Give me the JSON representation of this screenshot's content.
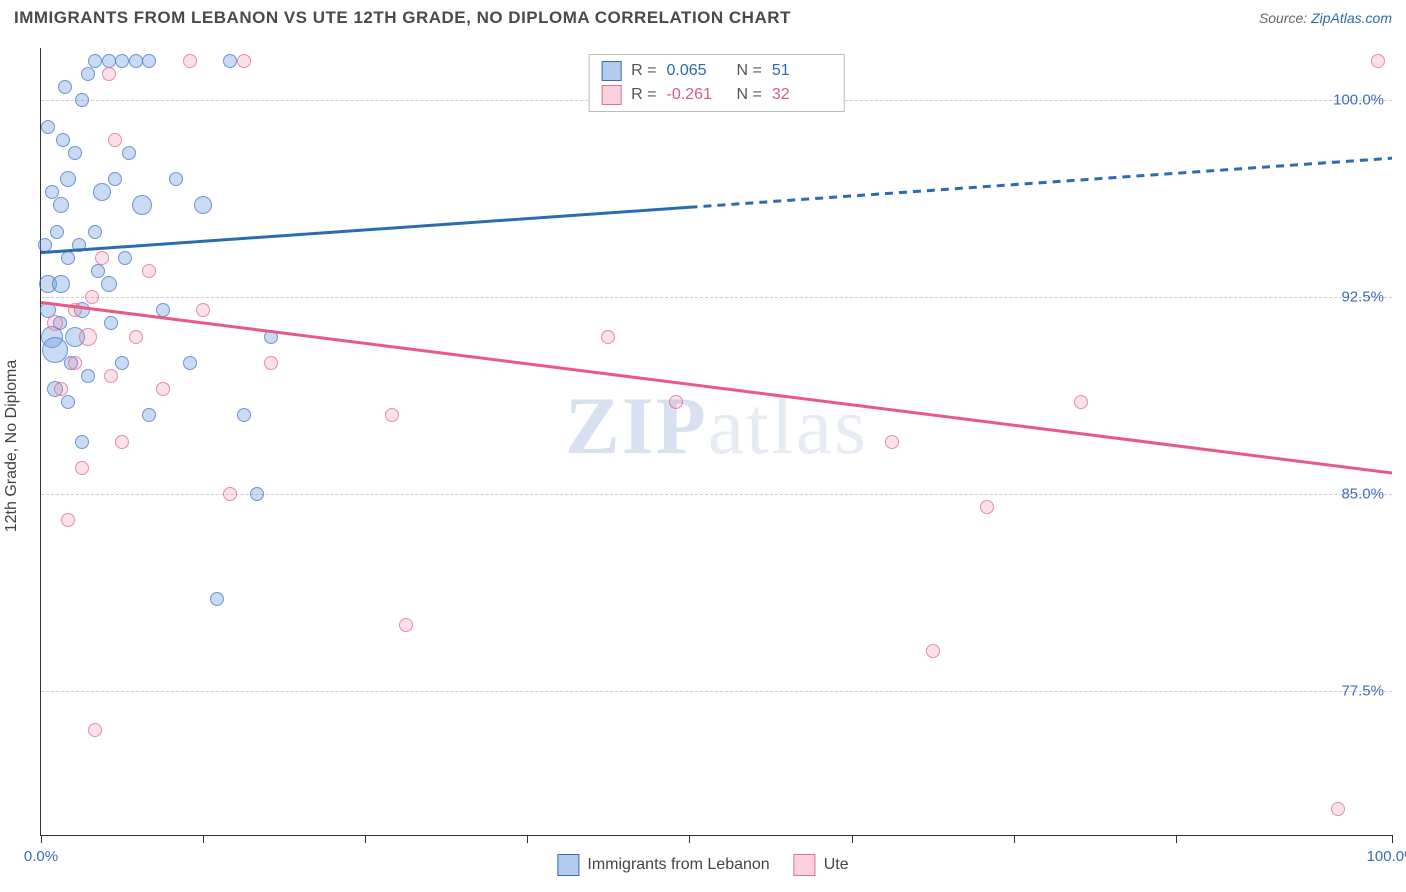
{
  "title": "IMMIGRANTS FROM LEBANON VS UTE 12TH GRADE, NO DIPLOMA CORRELATION CHART",
  "source_label": "Source:",
  "source_link": "ZipAtlas.com",
  "y_axis_label": "12th Grade, No Diploma",
  "watermark": {
    "bold": "ZIP",
    "rest": "atlas"
  },
  "chart": {
    "type": "scatter",
    "xlim": [
      0,
      100
    ],
    "ylim": [
      72,
      102
    ],
    "x_ticks": [
      0,
      12,
      24,
      36,
      48,
      60,
      72,
      84,
      100
    ],
    "x_tick_labels": {
      "0": "0.0%",
      "100": "100.0%"
    },
    "y_ticks": [
      77.5,
      85.0,
      92.5,
      100.0
    ],
    "y_tick_labels": [
      "77.5%",
      "85.0%",
      "92.5%",
      "100.0%"
    ],
    "grid_color": "#cccccc",
    "axis_color": "#333333",
    "background": "#ffffff",
    "series": [
      {
        "name": "Immigrants from Lebanon",
        "color_fill": "rgba(100,150,220,0.35)",
        "color_stroke": "#4a7bc8",
        "marker_size_range": [
          10,
          26
        ],
        "trend": {
          "y_start": 94.2,
          "y_end": 97.8,
          "solid_until_x": 48,
          "color": "#2b6cb0",
          "width": 3
        },
        "R": "0.065",
        "N": "51",
        "points": [
          {
            "x": 0.5,
            "y": 93,
            "s": 18
          },
          {
            "x": 0.5,
            "y": 92,
            "s": 16
          },
          {
            "x": 0.8,
            "y": 91,
            "s": 22
          },
          {
            "x": 1,
            "y": 90.5,
            "s": 26
          },
          {
            "x": 1.2,
            "y": 95,
            "s": 14
          },
          {
            "x": 1.5,
            "y": 96,
            "s": 16
          },
          {
            "x": 1.5,
            "y": 93,
            "s": 18
          },
          {
            "x": 2,
            "y": 94,
            "s": 14
          },
          {
            "x": 2,
            "y": 97,
            "s": 16
          },
          {
            "x": 2.5,
            "y": 98,
            "s": 14
          },
          {
            "x": 2.5,
            "y": 91,
            "s": 20
          },
          {
            "x": 3,
            "y": 92,
            "s": 16
          },
          {
            "x": 3,
            "y": 100,
            "s": 14
          },
          {
            "x": 3.5,
            "y": 101,
            "s": 14
          },
          {
            "x": 4,
            "y": 101.5,
            "s": 14
          },
          {
            "x": 4,
            "y": 95,
            "s": 14
          },
          {
            "x": 4.5,
            "y": 96.5,
            "s": 18
          },
          {
            "x": 5,
            "y": 101.5,
            "s": 14
          },
          {
            "x": 5,
            "y": 93,
            "s": 16
          },
          {
            "x": 5.5,
            "y": 97,
            "s": 14
          },
          {
            "x": 6,
            "y": 101.5,
            "s": 14
          },
          {
            "x": 6,
            "y": 90,
            "s": 14
          },
          {
            "x": 6.5,
            "y": 98,
            "s": 14
          },
          {
            "x": 7,
            "y": 101.5,
            "s": 14
          },
          {
            "x": 7.5,
            "y": 96,
            "s": 20
          },
          {
            "x": 8,
            "y": 88,
            "s": 14
          },
          {
            "x": 8,
            "y": 101.5,
            "s": 14
          },
          {
            "x": 9,
            "y": 92,
            "s": 14
          },
          {
            "x": 10,
            "y": 97,
            "s": 14
          },
          {
            "x": 11,
            "y": 90,
            "s": 14
          },
          {
            "x": 12,
            "y": 96,
            "s": 18
          },
          {
            "x": 13,
            "y": 81,
            "s": 14
          },
          {
            "x": 14,
            "y": 101.5,
            "s": 14
          },
          {
            "x": 15,
            "y": 88,
            "s": 14
          },
          {
            "x": 16,
            "y": 85,
            "s": 14
          },
          {
            "x": 17,
            "y": 91,
            "s": 14
          },
          {
            "x": 1,
            "y": 89,
            "s": 16
          },
          {
            "x": 2,
            "y": 88.5,
            "s": 14
          },
          {
            "x": 3,
            "y": 87,
            "s": 14
          },
          {
            "x": 0.5,
            "y": 99,
            "s": 14
          },
          {
            "x": 1.8,
            "y": 100.5,
            "s": 14
          },
          {
            "x": 2.8,
            "y": 94.5,
            "s": 14
          },
          {
            "x": 3.5,
            "y": 89.5,
            "s": 14
          },
          {
            "x": 4.2,
            "y": 93.5,
            "s": 14
          },
          {
            "x": 5.2,
            "y": 91.5,
            "s": 14
          },
          {
            "x": 6.2,
            "y": 94,
            "s": 14
          },
          {
            "x": 0.8,
            "y": 96.5,
            "s": 14
          },
          {
            "x": 1.4,
            "y": 91.5,
            "s": 14
          },
          {
            "x": 2.2,
            "y": 90,
            "s": 14
          },
          {
            "x": 0.3,
            "y": 94.5,
            "s": 14
          },
          {
            "x": 1.6,
            "y": 98.5,
            "s": 14
          }
        ]
      },
      {
        "name": "Ute",
        "color_fill": "rgba(240,140,170,0.25)",
        "color_stroke": "#e0708f",
        "marker_size_range": [
          10,
          22
        ],
        "trend": {
          "y_start": 92.3,
          "y_end": 85.8,
          "solid_until_x": 100,
          "color": "#e85a85",
          "width": 3
        },
        "R": "-0.261",
        "N": "32",
        "points": [
          {
            "x": 1,
            "y": 91.5,
            "s": 16
          },
          {
            "x": 1.5,
            "y": 89,
            "s": 14
          },
          {
            "x": 2,
            "y": 84,
            "s": 14
          },
          {
            "x": 2.5,
            "y": 92,
            "s": 14
          },
          {
            "x": 3,
            "y": 86,
            "s": 14
          },
          {
            "x": 3.5,
            "y": 91,
            "s": 18
          },
          {
            "x": 4,
            "y": 76,
            "s": 14
          },
          {
            "x": 4.5,
            "y": 94,
            "s": 14
          },
          {
            "x": 5,
            "y": 101,
            "s": 14
          },
          {
            "x": 5.5,
            "y": 98.5,
            "s": 14
          },
          {
            "x": 6,
            "y": 87,
            "s": 14
          },
          {
            "x": 7,
            "y": 91,
            "s": 14
          },
          {
            "x": 8,
            "y": 93.5,
            "s": 14
          },
          {
            "x": 9,
            "y": 89,
            "s": 14
          },
          {
            "x": 11,
            "y": 101.5,
            "s": 14
          },
          {
            "x": 12,
            "y": 92,
            "s": 14
          },
          {
            "x": 14,
            "y": 85,
            "s": 14
          },
          {
            "x": 15,
            "y": 101.5,
            "s": 14
          },
          {
            "x": 17,
            "y": 90,
            "s": 14
          },
          {
            "x": 26,
            "y": 88,
            "s": 14
          },
          {
            "x": 27,
            "y": 80,
            "s": 14
          },
          {
            "x": 42,
            "y": 91,
            "s": 14
          },
          {
            "x": 47,
            "y": 88.5,
            "s": 14
          },
          {
            "x": 63,
            "y": 87,
            "s": 14
          },
          {
            "x": 66,
            "y": 79,
            "s": 14
          },
          {
            "x": 70,
            "y": 84.5,
            "s": 14
          },
          {
            "x": 77,
            "y": 88.5,
            "s": 14
          },
          {
            "x": 96,
            "y": 73,
            "s": 14
          },
          {
            "x": 99,
            "y": 101.5,
            "s": 14
          },
          {
            "x": 2.5,
            "y": 90,
            "s": 14
          },
          {
            "x": 3.8,
            "y": 92.5,
            "s": 14
          },
          {
            "x": 5.2,
            "y": 89.5,
            "s": 14
          }
        ]
      }
    ]
  },
  "stats_box": {
    "rows": [
      {
        "swatch": "blue",
        "R": "0.065",
        "N": "51",
        "val_class": "stat-val-blue"
      },
      {
        "swatch": "pink",
        "R": "-0.261",
        "N": "32",
        "val_class": "stat-val-pink"
      }
    ]
  },
  "bottom_legend": [
    {
      "swatch": "blue",
      "label": "Immigrants from Lebanon"
    },
    {
      "swatch": "pink",
      "label": "Ute"
    }
  ]
}
